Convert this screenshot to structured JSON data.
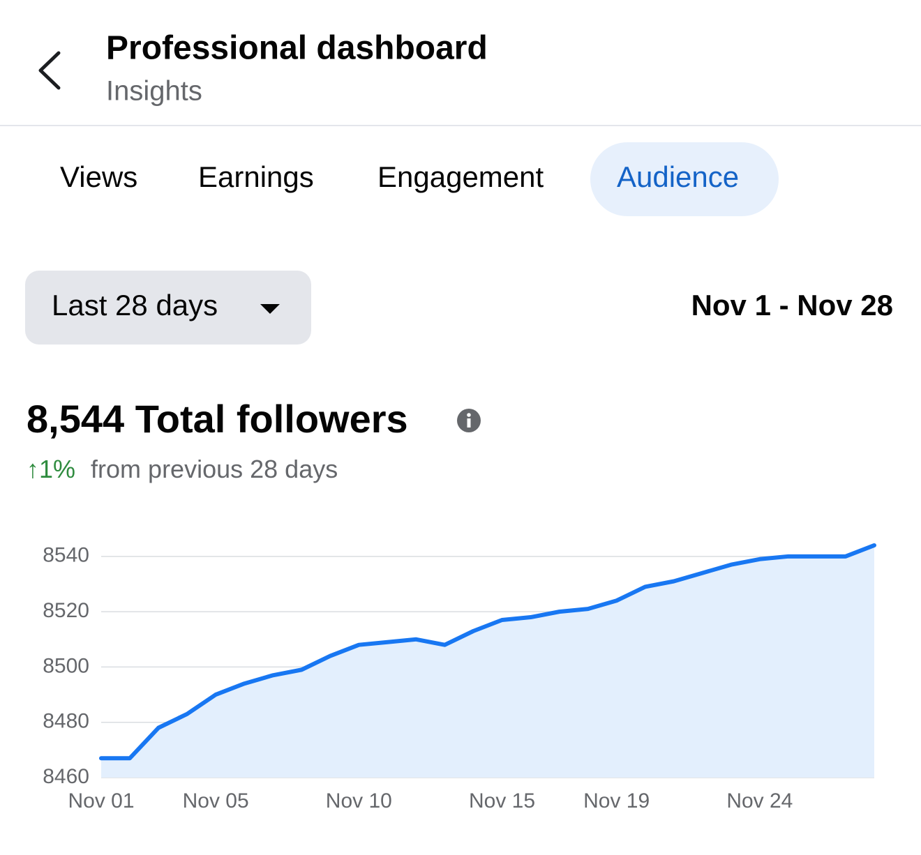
{
  "header": {
    "title": "Professional dashboard",
    "subtitle": "Insights"
  },
  "tabs": {
    "items": [
      "Views",
      "Earnings",
      "Engagement",
      "Audience"
    ],
    "active": 3
  },
  "range": {
    "selector": "Last 28 days",
    "dates": "Nov 1 - Nov 28"
  },
  "summary": {
    "total": "8,544 Total followers",
    "change": "↑1%",
    "change_text": "from previous 28 days"
  },
  "chart_data": {
    "type": "area",
    "categories": [
      "Nov 01",
      null,
      null,
      null,
      "Nov 05",
      null,
      null,
      null,
      null,
      "Nov 10",
      null,
      null,
      null,
      null,
      "Nov 15",
      null,
      null,
      null,
      "Nov 19",
      null,
      null,
      null,
      null,
      "Nov 24",
      null,
      null,
      null,
      null
    ],
    "series": [
      {
        "name": "Total followers",
        "color": "#1877f2",
        "values": [
          8467,
          8467,
          8478,
          8483,
          8490,
          8494,
          8497,
          8499,
          8504,
          8508,
          8509,
          8510,
          8508,
          8513,
          8517,
          8518,
          8520,
          8521,
          8524,
          8529,
          8531,
          8534,
          8537,
          8539,
          8540,
          8540,
          8540,
          8544
        ]
      }
    ],
    "area_color": "#e3effd",
    "ylim": [
      8460,
      8545
    ],
    "yticks": [
      8460,
      8480,
      8500,
      8520,
      8540
    ],
    "grid": true
  }
}
